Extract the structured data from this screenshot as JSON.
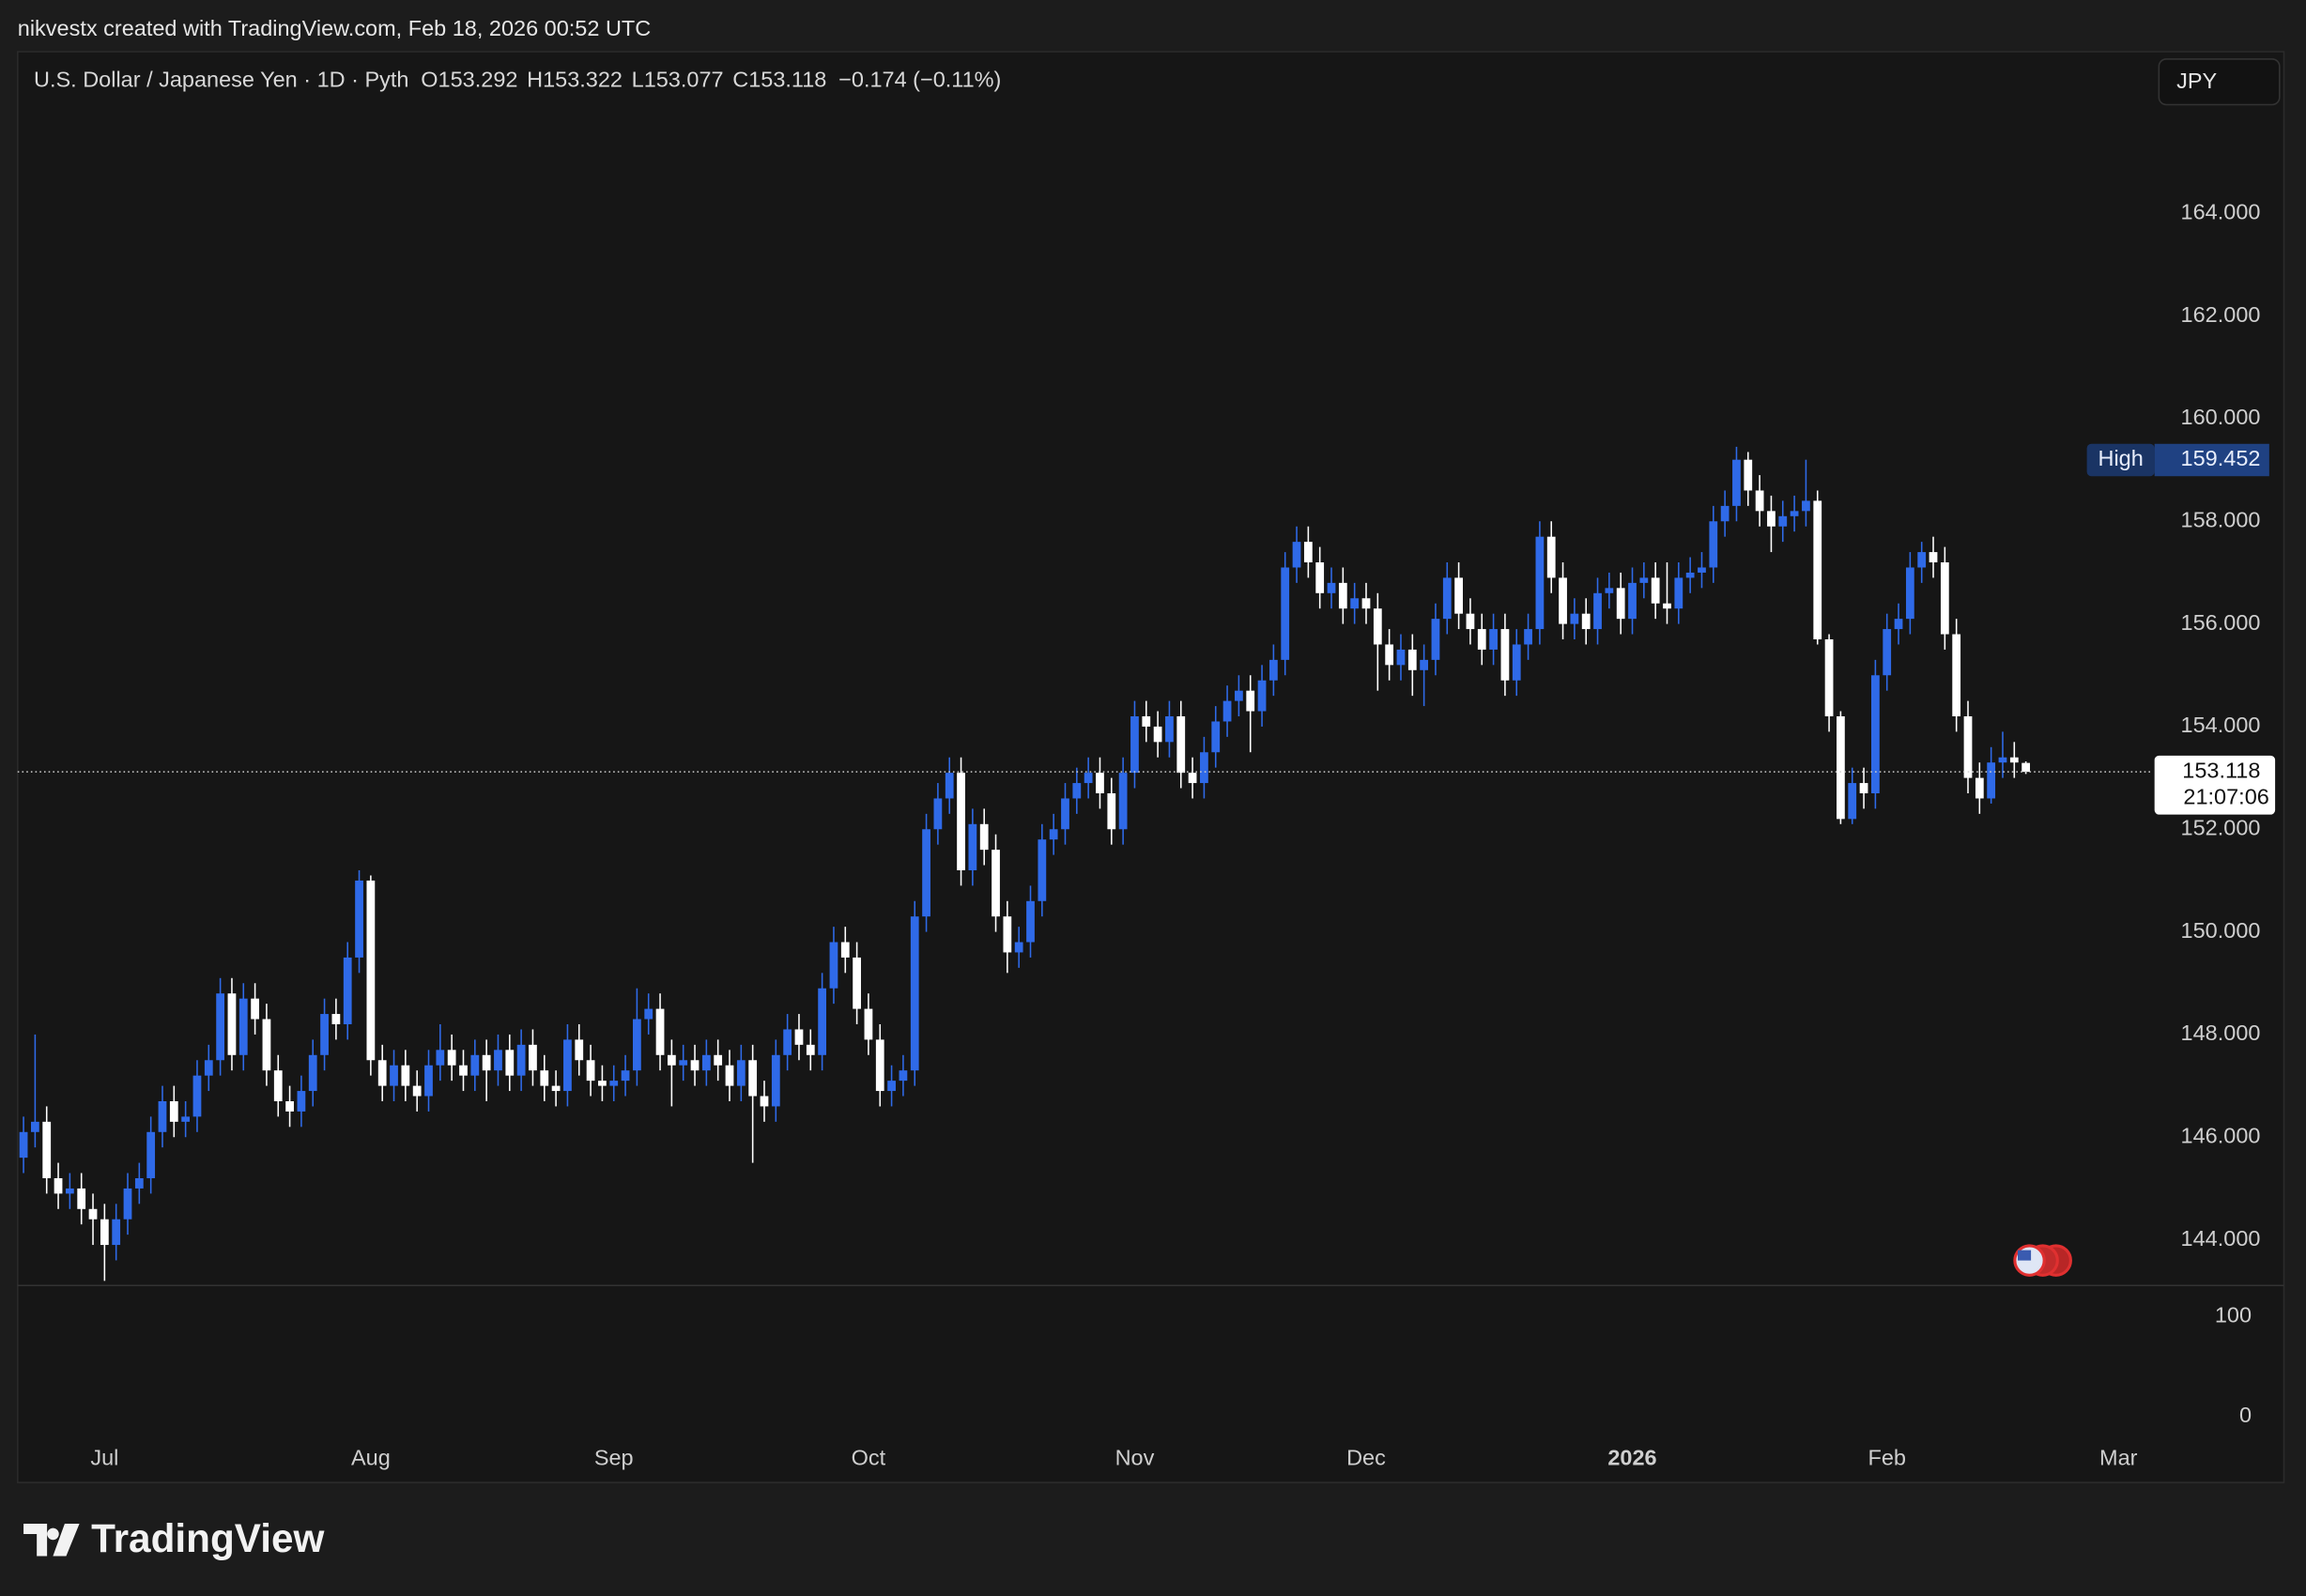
{
  "header": {
    "attribution": "nikvestx created with TradingView.com, Feb 18, 2026 00:52 UTC"
  },
  "footer": {
    "logo": "TradingView"
  },
  "chart_data": {
    "type": "candlestick",
    "symbol": "U.S. Dollar / Japanese Yen · 1D · Pyth",
    "ohlc_letters": [
      "O",
      "H",
      "L",
      "C"
    ],
    "change_label": "−0.174 (−0.11%)",
    "currency_button": "JPY",
    "high_label": "High",
    "countdown": "21:07:06",
    "up_color": "#2f6ae8",
    "down_color": "#ffffff",
    "grid": false,
    "ylim": [
      143.11,
      167.15
    ],
    "yticks": [
      {
        "value": 144,
        "label": "144.000"
      },
      {
        "value": 146,
        "label": "146.000"
      },
      {
        "value": 148,
        "label": "148.000"
      },
      {
        "value": 150,
        "label": "150.000"
      },
      {
        "value": 152,
        "label": "152.000"
      },
      {
        "value": 154,
        "label": "154.000"
      },
      {
        "value": 156,
        "label": "156.000"
      },
      {
        "value": 158,
        "label": "158.000"
      },
      {
        "value": 160,
        "label": "160.000"
      },
      {
        "value": 162,
        "label": "162.000"
      },
      {
        "value": 164,
        "label": "164.000"
      }
    ],
    "lower_pane": {
      "ylim": [
        -25,
        131
      ],
      "yticks": [
        0,
        100
      ]
    },
    "categories": [
      null,
      null,
      null,
      null,
      null,
      null,
      null,
      "Jul",
      null,
      null,
      null,
      null,
      null,
      null,
      null,
      null,
      null,
      null,
      null,
      null,
      null,
      null,
      null,
      null,
      null,
      null,
      null,
      null,
      null,
      null,
      "Aug",
      null,
      null,
      null,
      null,
      null,
      null,
      null,
      null,
      null,
      null,
      null,
      null,
      null,
      null,
      null,
      null,
      null,
      null,
      null,
      null,
      "Sep",
      null,
      null,
      null,
      null,
      null,
      null,
      null,
      null,
      null,
      null,
      null,
      null,
      null,
      null,
      null,
      null,
      null,
      null,
      null,
      null,
      null,
      "Oct",
      null,
      null,
      null,
      null,
      null,
      null,
      null,
      null,
      null,
      null,
      null,
      null,
      null,
      null,
      null,
      null,
      null,
      null,
      null,
      null,
      null,
      null,
      "Nov",
      null,
      null,
      null,
      null,
      null,
      null,
      null,
      null,
      null,
      null,
      null,
      null,
      null,
      null,
      null,
      null,
      null,
      null,
      null,
      "Dec",
      null,
      null,
      null,
      null,
      null,
      null,
      null,
      null,
      null,
      null,
      null,
      null,
      null,
      null,
      null,
      null,
      null,
      null,
      null,
      null,
      null,
      null,
      "2026",
      null,
      null,
      null,
      null,
      null,
      null,
      null,
      null,
      null,
      null,
      null,
      null,
      null,
      null,
      null,
      null,
      null,
      null,
      null,
      null,
      null,
      "Feb",
      null,
      null,
      null,
      null,
      null,
      null,
      null,
      null,
      null,
      null,
      null,
      null,
      null,
      null,
      null,
      null,
      null,
      null,
      null,
      "Mar"
    ],
    "open": [
      145.6,
      146.1,
      146.3,
      145.2,
      144.9,
      145.0,
      144.6,
      144.4,
      143.9,
      144.4,
      145.0,
      145.2,
      146.1,
      146.7,
      146.3,
      146.4,
      147.2,
      147.5,
      148.8,
      147.6,
      148.7,
      148.3,
      147.3,
      146.7,
      146.5,
      146.9,
      147.6,
      148.4,
      148.2,
      149.5,
      151.0,
      147.5,
      147.0,
      147.4,
      147.0,
      146.8,
      147.4,
      147.7,
      147.4,
      147.2,
      147.6,
      147.3,
      147.7,
      147.2,
      147.8,
      147.3,
      147.0,
      146.9,
      147.9,
      147.5,
      147.1,
      147.0,
      147.1,
      147.3,
      148.3,
      148.5,
      147.6,
      147.4,
      147.5,
      147.3,
      147.6,
      147.4,
      147.0,
      147.5,
      146.8,
      146.6,
      147.6,
      148.1,
      147.8,
      147.6,
      148.9,
      149.8,
      149.5,
      148.5,
      147.9,
      146.9,
      147.1,
      147.3,
      150.3,
      152.0,
      152.6,
      153.1,
      151.2,
      152.1,
      151.6,
      150.3,
      149.6,
      149.8,
      150.6,
      151.8,
      152.0,
      152.6,
      152.9,
      153.1,
      152.7,
      152.0,
      153.1,
      154.2,
      154.0,
      153.7,
      154.2,
      153.1,
      152.9,
      153.5,
      154.1,
      154.5,
      154.7,
      154.3,
      154.9,
      155.3,
      157.1,
      157.6,
      157.2,
      156.6,
      156.8,
      156.3,
      156.5,
      156.3,
      155.6,
      155.2,
      155.5,
      155.1,
      155.3,
      156.1,
      156.9,
      156.2,
      155.9,
      155.5,
      155.9,
      154.9,
      155.6,
      155.9,
      157.7,
      156.9,
      156.0,
      156.2,
      155.9,
      156.6,
      156.7,
      156.1,
      156.8,
      156.9,
      156.4,
      156.3,
      156.9,
      157.0,
      157.1,
      158.0,
      158.3,
      159.2,
      158.6,
      158.2,
      157.9,
      158.1,
      158.2,
      158.4,
      155.7,
      154.2,
      152.2,
      152.9,
      152.7,
      155.0,
      155.9,
      156.1,
      157.1,
      157.4,
      157.2,
      155.8,
      154.2,
      153.0,
      152.6,
      153.3,
      153.4,
      153.292,
      null,
      null,
      null,
      null,
      null,
      null,
      null,
      null
    ],
    "high": [
      146.4,
      148.0,
      146.6,
      145.5,
      145.3,
      145.3,
      144.9,
      144.7,
      144.7,
      145.3,
      145.5,
      146.4,
      147.0,
      147.0,
      146.7,
      147.5,
      147.8,
      149.1,
      149.1,
      149.0,
      149.0,
      148.6,
      147.6,
      147.0,
      147.2,
      147.9,
      148.7,
      148.7,
      149.8,
      151.2,
      151.1,
      147.8,
      147.7,
      147.7,
      147.3,
      147.7,
      148.2,
      148.0,
      147.7,
      147.9,
      147.9,
      148.0,
      148.0,
      148.1,
      148.1,
      147.6,
      147.3,
      148.2,
      148.2,
      147.8,
      147.4,
      147.4,
      147.6,
      148.9,
      148.8,
      148.8,
      147.9,
      147.8,
      147.8,
      147.9,
      147.9,
      147.7,
      147.8,
      147.8,
      147.1,
      147.9,
      148.4,
      148.4,
      148.1,
      149.2,
      150.1,
      150.1,
      149.8,
      148.8,
      148.2,
      147.4,
      147.6,
      150.6,
      152.3,
      152.9,
      153.4,
      153.4,
      152.4,
      152.4,
      151.9,
      150.6,
      150.1,
      150.9,
      152.1,
      152.3,
      152.9,
      153.2,
      153.4,
      153.4,
      153.0,
      153.4,
      154.5,
      154.5,
      154.3,
      154.5,
      154.5,
      153.4,
      153.8,
      154.4,
      154.8,
      155.0,
      155.0,
      155.2,
      155.6,
      157.4,
      157.9,
      157.9,
      157.5,
      157.1,
      157.1,
      156.8,
      156.8,
      156.6,
      155.9,
      155.8,
      155.8,
      155.6,
      156.4,
      157.2,
      157.2,
      156.5,
      156.2,
      156.2,
      156.2,
      155.9,
      156.2,
      158.0,
      158.0,
      157.2,
      156.5,
      156.5,
      156.9,
      157.0,
      157.0,
      157.1,
      157.2,
      157.2,
      157.2,
      157.2,
      157.3,
      157.4,
      158.3,
      158.6,
      159.452,
      159.35,
      158.9,
      158.5,
      158.4,
      158.5,
      159.2,
      158.6,
      155.8,
      154.3,
      153.2,
      153.2,
      155.3,
      156.2,
      156.4,
      157.4,
      157.6,
      157.7,
      157.5,
      156.1,
      154.5,
      153.3,
      153.6,
      153.9,
      153.7,
      153.322,
      null,
      null,
      null,
      null,
      null,
      null,
      null,
      null
    ],
    "low": [
      145.3,
      145.8,
      144.9,
      144.6,
      144.6,
      144.3,
      143.9,
      143.2,
      143.6,
      144.1,
      144.7,
      144.9,
      145.8,
      146.0,
      146.0,
      146.1,
      146.9,
      147.2,
      147.3,
      147.3,
      148.0,
      147.0,
      146.4,
      146.2,
      146.2,
      146.6,
      147.3,
      147.9,
      147.9,
      149.2,
      147.2,
      146.7,
      146.7,
      146.7,
      146.5,
      146.5,
      147.1,
      147.1,
      146.9,
      146.9,
      146.7,
      147.0,
      146.9,
      146.9,
      147.0,
      146.7,
      146.6,
      146.6,
      147.2,
      146.8,
      146.7,
      146.7,
      146.8,
      147.0,
      148.0,
      147.3,
      146.6,
      147.1,
      147.0,
      147.0,
      147.1,
      146.7,
      146.7,
      145.5,
      146.3,
      146.3,
      147.3,
      147.5,
      147.3,
      147.3,
      148.6,
      149.2,
      148.2,
      147.6,
      146.6,
      146.6,
      146.8,
      147.0,
      150.0,
      151.7,
      152.3,
      150.9,
      150.9,
      151.3,
      150.0,
      149.2,
      149.3,
      149.5,
      150.3,
      151.5,
      151.7,
      152.3,
      152.6,
      152.4,
      151.7,
      151.7,
      152.8,
      153.7,
      153.4,
      153.4,
      152.8,
      152.6,
      152.6,
      153.2,
      153.8,
      154.2,
      153.5,
      154.0,
      154.6,
      155.0,
      156.8,
      156.9,
      156.3,
      156.3,
      156.0,
      156.0,
      156.0,
      154.7,
      154.9,
      154.9,
      154.6,
      154.4,
      155.0,
      155.8,
      155.9,
      155.6,
      155.2,
      155.2,
      154.6,
      154.6,
      155.3,
      155.6,
      156.6,
      155.7,
      155.7,
      155.6,
      155.6,
      156.3,
      155.8,
      155.8,
      156.5,
      156.1,
      156.0,
      156.0,
      156.6,
      156.7,
      156.8,
      157.7,
      158.0,
      158.3,
      157.9,
      157.4,
      157.6,
      157.8,
      157.9,
      155.6,
      153.9,
      152.1,
      152.1,
      152.4,
      152.4,
      154.7,
      155.6,
      155.8,
      156.8,
      156.9,
      155.5,
      153.9,
      152.7,
      152.3,
      152.5,
      153.0,
      153.0,
      153.077,
      null,
      null,
      null,
      null,
      null,
      null,
      null,
      null
    ],
    "close": [
      146.1,
      146.3,
      145.2,
      144.9,
      145.0,
      144.6,
      144.4,
      143.9,
      144.4,
      145.0,
      145.2,
      146.1,
      146.7,
      146.3,
      146.4,
      147.2,
      147.5,
      148.8,
      147.6,
      148.7,
      148.3,
      147.3,
      146.7,
      146.5,
      146.9,
      147.6,
      148.4,
      148.2,
      149.5,
      151.0,
      147.5,
      147.0,
      147.4,
      147.0,
      146.8,
      147.4,
      147.7,
      147.4,
      147.2,
      147.6,
      147.3,
      147.7,
      147.2,
      147.8,
      147.3,
      147.0,
      146.9,
      147.9,
      147.5,
      147.1,
      147.0,
      147.1,
      147.3,
      148.3,
      148.5,
      147.6,
      147.4,
      147.5,
      147.3,
      147.6,
      147.4,
      147.0,
      147.5,
      146.8,
      146.6,
      147.6,
      148.1,
      147.8,
      147.6,
      148.9,
      149.8,
      149.5,
      148.5,
      147.9,
      146.9,
      147.1,
      147.3,
      150.3,
      152.0,
      152.6,
      153.1,
      151.2,
      152.1,
      151.6,
      150.3,
      149.6,
      149.8,
      150.6,
      151.8,
      152.0,
      152.6,
      152.9,
      153.1,
      152.7,
      152.0,
      153.1,
      154.2,
      154.0,
      153.7,
      154.2,
      153.1,
      152.9,
      153.5,
      154.1,
      154.5,
      154.7,
      154.3,
      154.9,
      155.3,
      157.1,
      157.6,
      157.2,
      156.6,
      156.8,
      156.3,
      156.5,
      156.3,
      155.6,
      155.2,
      155.5,
      155.1,
      155.3,
      156.1,
      156.9,
      156.2,
      155.9,
      155.5,
      155.9,
      154.9,
      155.6,
      155.9,
      157.7,
      156.9,
      156.0,
      156.2,
      155.9,
      156.6,
      156.7,
      156.1,
      156.8,
      156.9,
      156.4,
      156.3,
      156.9,
      157.0,
      157.1,
      158.0,
      158.3,
      159.2,
      158.6,
      158.2,
      157.9,
      158.1,
      158.2,
      158.4,
      155.7,
      154.2,
      152.2,
      152.9,
      152.7,
      155.0,
      155.9,
      156.1,
      157.1,
      157.4,
      157.2,
      155.8,
      154.2,
      153.0,
      152.6,
      153.3,
      153.4,
      153.3,
      153.118,
      null,
      null,
      null,
      null,
      null,
      null,
      null,
      null
    ]
  }
}
